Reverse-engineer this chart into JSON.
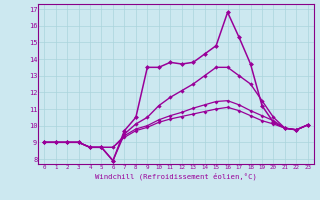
{
  "xlabel": "Windchill (Refroidissement éolien,°C)",
  "bg_color": "#cce8f0",
  "line_color": "#990099",
  "grid_color": "#aad4dc",
  "spine_color": "#880088",
  "xlim": [
    -0.5,
    23.5
  ],
  "ylim": [
    7.7,
    17.3
  ],
  "xticks": [
    0,
    1,
    2,
    3,
    4,
    5,
    6,
    7,
    8,
    9,
    10,
    11,
    12,
    13,
    14,
    15,
    16,
    17,
    18,
    19,
    20,
    21,
    22,
    23
  ],
  "yticks": [
    8,
    9,
    10,
    11,
    12,
    13,
    14,
    15,
    16,
    17
  ],
  "series": [
    [
      9.0,
      9.0,
      9.0,
      9.0,
      8.7,
      8.7,
      8.7,
      9.3,
      9.7,
      9.9,
      10.2,
      10.4,
      10.55,
      10.7,
      10.85,
      11.0,
      11.1,
      10.9,
      10.6,
      10.3,
      10.1,
      9.85,
      9.75,
      10.05
    ],
    [
      9.0,
      9.0,
      9.0,
      9.0,
      8.7,
      8.7,
      8.7,
      9.4,
      9.8,
      10.0,
      10.35,
      10.6,
      10.8,
      11.05,
      11.25,
      11.45,
      11.5,
      11.25,
      10.9,
      10.6,
      10.3,
      9.85,
      9.75,
      10.05
    ],
    [
      9.0,
      9.0,
      9.0,
      9.0,
      8.7,
      8.7,
      7.9,
      9.5,
      10.1,
      10.5,
      11.2,
      11.7,
      12.1,
      12.5,
      13.0,
      13.5,
      13.5,
      13.0,
      12.5,
      11.5,
      10.5,
      9.85,
      9.75,
      10.05
    ],
    [
      9.0,
      9.0,
      9.0,
      9.0,
      8.7,
      8.7,
      7.9,
      9.7,
      10.5,
      13.5,
      13.5,
      13.8,
      13.7,
      13.8,
      14.3,
      14.8,
      16.8,
      15.3,
      13.7,
      11.2,
      10.2,
      9.85,
      9.75,
      10.05
    ]
  ]
}
